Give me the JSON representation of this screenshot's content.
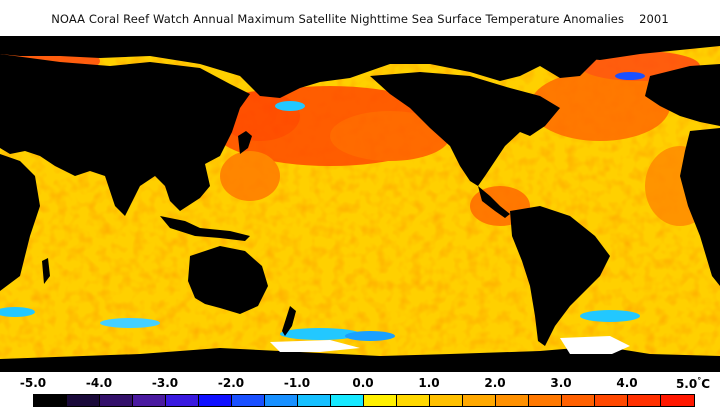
{
  "title": "NOAA Coral Reef Watch Annual Maximum Satellite Nighttime Sea Surface Temperature Anomalies",
  "year": "2001",
  "map": {
    "ocean_base_color": "#ffd000",
    "land_color": "#000000",
    "ice_color": "#ffffff"
  },
  "scale": {
    "unit": "°C",
    "ticks": [
      "-5.0",
      "-4.0",
      "-3.0",
      "-2.0",
      "-1.0",
      "0.0",
      "1.0",
      "2.0",
      "3.0",
      "4.0",
      "5.0"
    ],
    "colors": [
      "#000000",
      "#1a0a3a",
      "#33106a",
      "#4a1aa0",
      "#3a1ae0",
      "#1010ff",
      "#1a50ff",
      "#1890ff",
      "#16c0ff",
      "#16e8ff",
      "#fff000",
      "#ffd800",
      "#ffc000",
      "#ffa800",
      "#ff9000",
      "#ff7800",
      "#ff6000",
      "#ff4800",
      "#ff3000",
      "#ff1800"
    ]
  }
}
